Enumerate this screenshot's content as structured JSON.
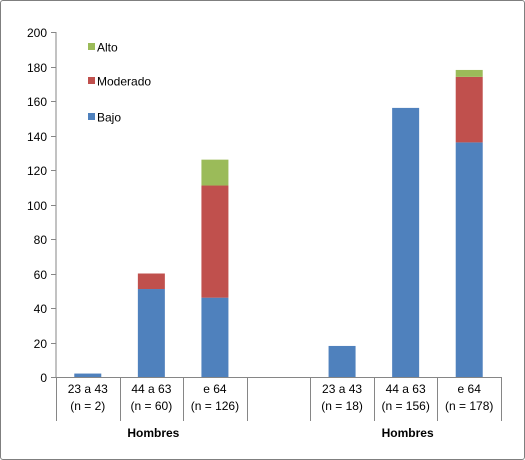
{
  "chart_data": {
    "type": "bar",
    "stacked": true,
    "categories": [
      [
        "23 a 43",
        "(n = 2)"
      ],
      [
        "44 a 63",
        "(n = 60)"
      ],
      [
        "e 64",
        "(n = 126)"
      ],
      [
        "",
        ""
      ],
      [
        "23 a 43",
        "(n = 18)"
      ],
      [
        "44 a 63",
        "(n = 156)"
      ],
      [
        "e 64",
        "(n = 178)"
      ]
    ],
    "group_labels": [
      "Hombres",
      "Hombres"
    ],
    "series": [
      {
        "name": "Bajo",
        "color": "#4f81bd",
        "values": [
          2,
          51,
          46,
          0,
          18,
          156,
          136
        ]
      },
      {
        "name": "Moderado",
        "color": "#c0504d",
        "values": [
          0,
          9,
          65,
          0,
          0,
          0,
          38
        ]
      },
      {
        "name": "Alto",
        "color": "#9bbb59",
        "values": [
          0,
          0,
          15,
          0,
          0,
          0,
          4
        ]
      }
    ],
    "ylim": [
      0,
      200
    ],
    "yticks": [
      0,
      20,
      40,
      60,
      80,
      100,
      120,
      140,
      160,
      180,
      200
    ],
    "legend_position": "top-left",
    "grid": false
  }
}
